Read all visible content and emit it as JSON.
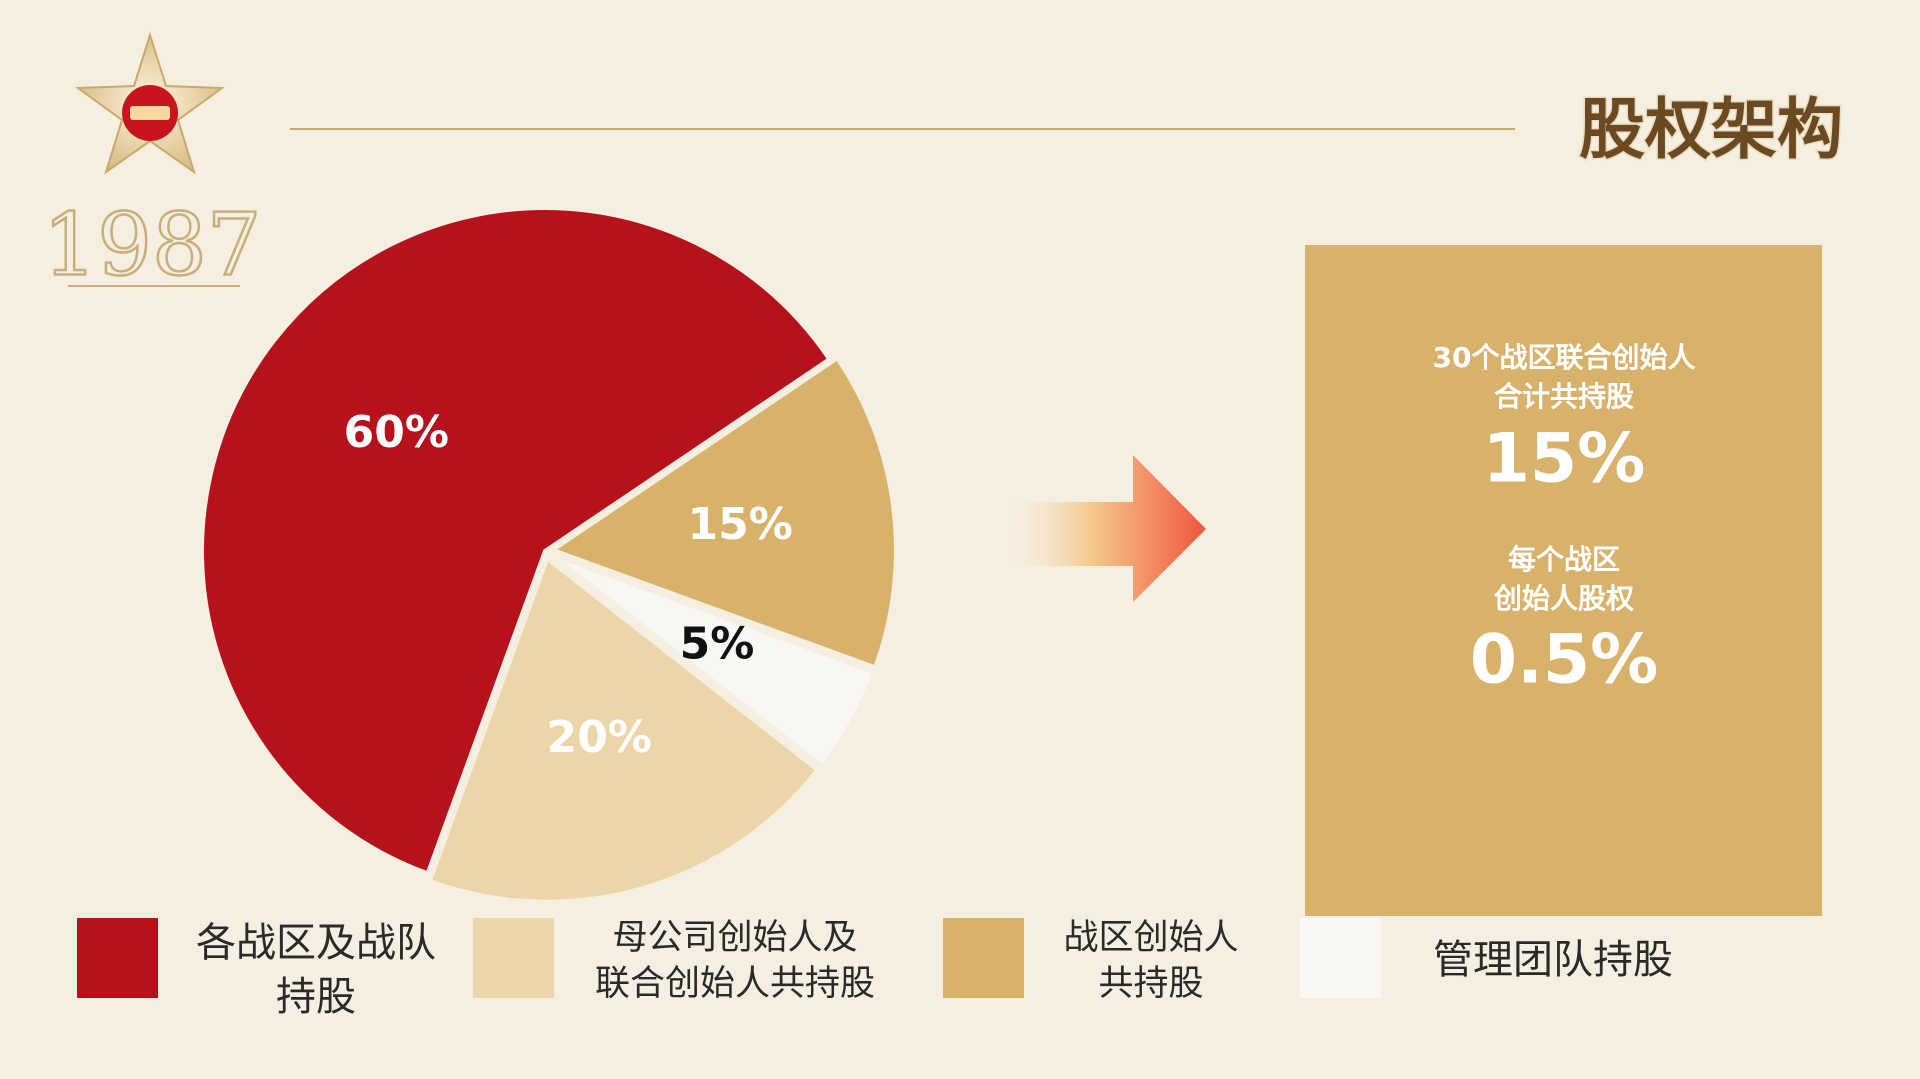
{
  "title": "股权架构",
  "logo": {
    "text": "1987"
  },
  "chart_data": {
    "type": "pie",
    "categories": [
      "各战区及战队\n持股",
      "母公司创始人及\n联合创始人共持股",
      "战区创始人\n共持股",
      "管理团队持股"
    ],
    "values": [
      60,
      20,
      15,
      5
    ],
    "value_labels": [
      "60%",
      "20%",
      "15%",
      "5%"
    ],
    "colors": [
      "#b5121b",
      "#ecd5a8",
      "#d8b26a",
      "#f9f7f3"
    ],
    "label_colors": [
      "#ffffff",
      "#ffffff",
      "#ffffff",
      "#111111"
    ]
  },
  "callout": {
    "lines": [
      "30个战区联合创始人",
      "合计共持股",
      "15%",
      "每个战区",
      "创始人股权",
      "0.5%"
    ]
  }
}
